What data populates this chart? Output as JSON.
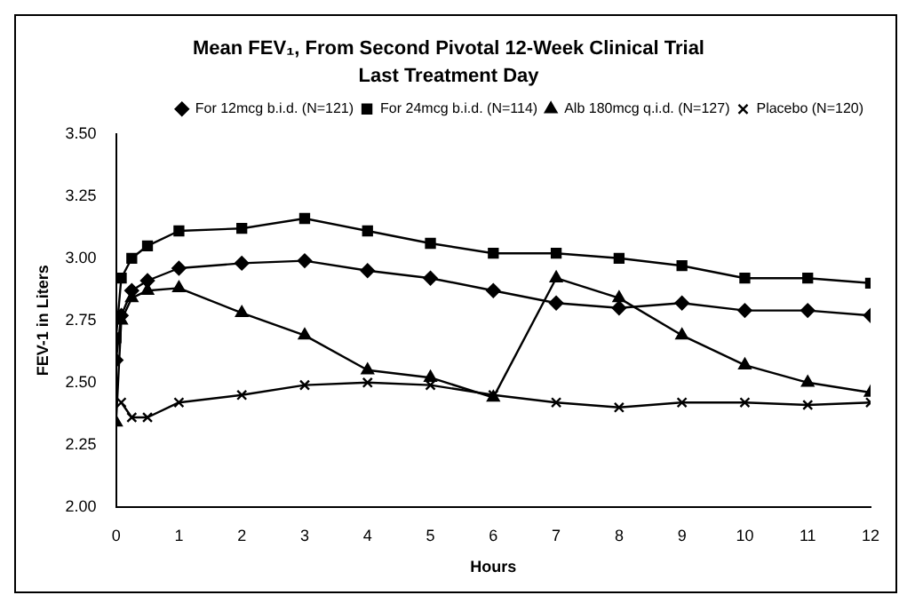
{
  "chart_data": {
    "type": "line",
    "title": "Mean FEV₁, From Second Pivotal 12-Week Clinical Trial",
    "subtitle": "Last Treatment Day",
    "xlabel": "Hours",
    "ylabel": "FEV-1 in Liters",
    "x": [
      0,
      0.083,
      0.25,
      0.5,
      1,
      2,
      3,
      4,
      5,
      6,
      7,
      8,
      9,
      10,
      11,
      12
    ],
    "xlim": [
      0,
      12
    ],
    "xticks": [
      0,
      1,
      2,
      3,
      4,
      5,
      6,
      7,
      8,
      9,
      10,
      11,
      12
    ],
    "ylim": [
      2,
      3.5
    ],
    "yticks": [
      {
        "value": 2,
        "label": "2.00"
      },
      {
        "value": 2.25,
        "label": "2.25"
      },
      {
        "value": 2.5,
        "label": "2.50"
      },
      {
        "value": 2.75,
        "label": "2.75"
      },
      {
        "value": 3,
        "label": "3.00"
      },
      {
        "value": 3.25,
        "label": "3.25"
      },
      {
        "value": 3.5,
        "label": "3.50"
      }
    ],
    "series": [
      {
        "name": "For 12mcg b.i.d. (N=121)",
        "color": "#000000",
        "marker": "diamond",
        "values": [
          2.59,
          2.77,
          2.87,
          2.91,
          2.96,
          2.98,
          2.99,
          2.95,
          2.92,
          2.87,
          2.82,
          2.8,
          2.82,
          2.79,
          2.79,
          2.77
        ]
      },
      {
        "name": "For 24mcg b.i.d. (N=114)",
        "color": "#000000",
        "marker": "square",
        "values": [
          2.68,
          2.92,
          3.0,
          3.05,
          3.11,
          3.12,
          3.16,
          3.11,
          3.06,
          3.02,
          3.02,
          3.0,
          2.97,
          2.92,
          2.92,
          2.9
        ]
      },
      {
        "name": "Alb 180mcg q.i.d. (N=127)",
        "color": "#000000",
        "marker": "triangle",
        "values": [
          2.34,
          2.75,
          2.84,
          2.87,
          2.88,
          2.78,
          2.69,
          2.55,
          2.52,
          2.44,
          2.92,
          2.84,
          2.69,
          2.57,
          2.5,
          2.46
        ]
      },
      {
        "name": "Placebo (N=120)",
        "color": "#000000",
        "marker": "cross",
        "values": [
          null,
          2.42,
          2.36,
          2.36,
          2.42,
          2.45,
          2.49,
          2.5,
          2.49,
          2.45,
          2.42,
          2.4,
          2.42,
          2.42,
          2.41,
          2.42
        ]
      }
    ],
    "grid": false,
    "legend": "top right",
    "line_style": "solid"
  }
}
